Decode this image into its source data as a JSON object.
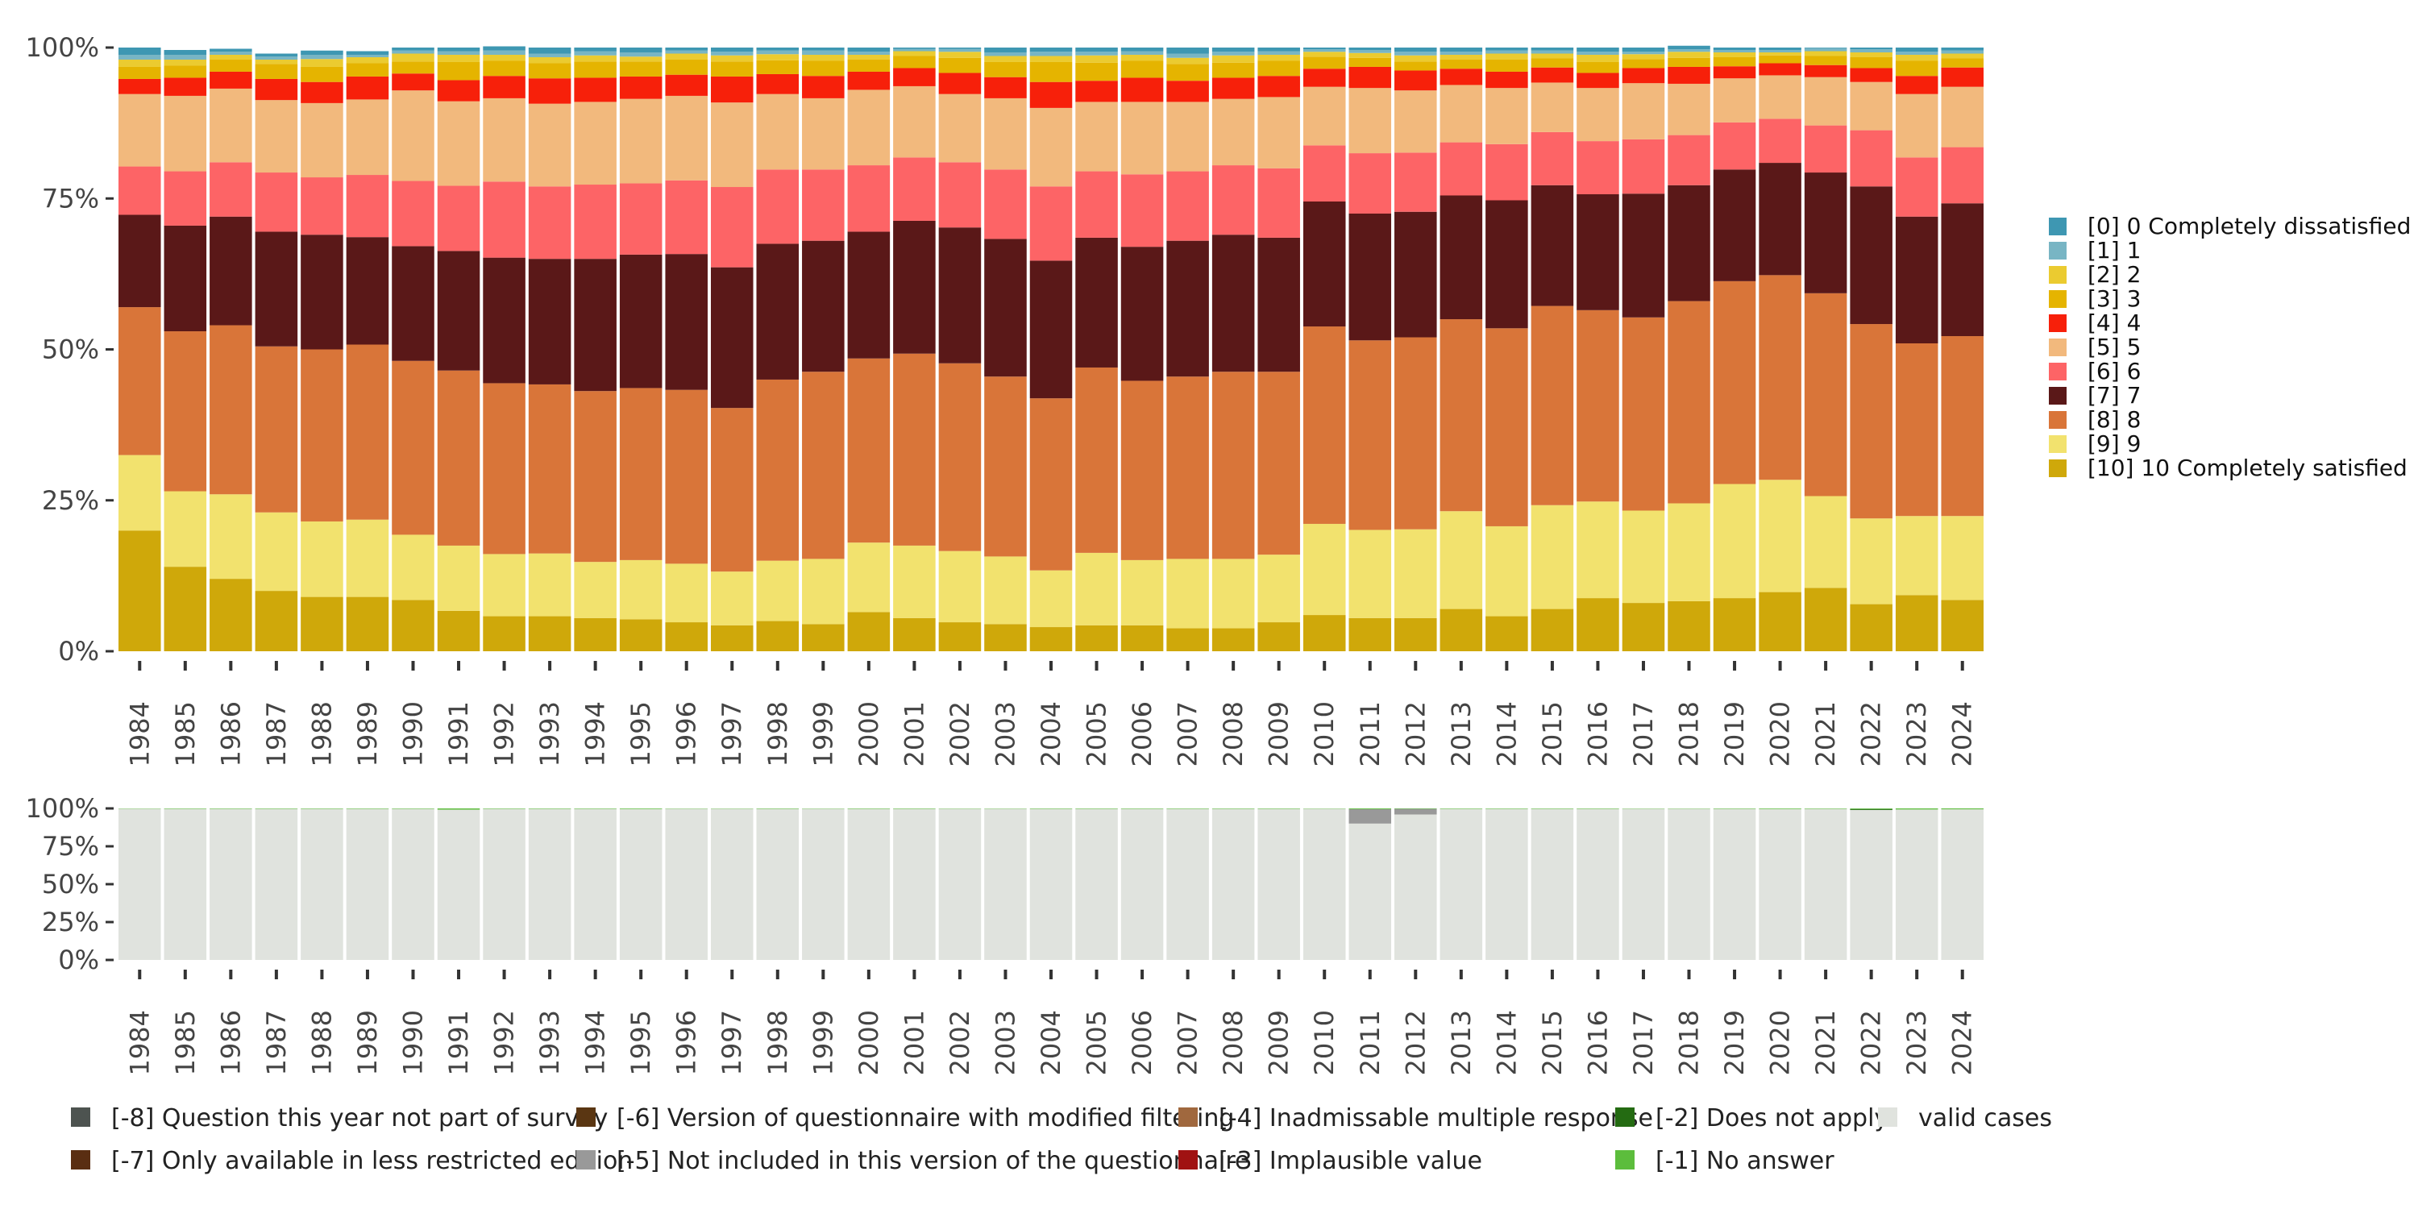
{
  "chart_data": [
    {
      "type": "bar",
      "stacked": true,
      "normalized": true,
      "title": "",
      "xlabel": "",
      "ylabel": "",
      "ylim": [
        0,
        1
      ],
      "y_tick_labels": [
        "0%",
        "25%",
        "50%",
        "75%",
        "100%"
      ],
      "categories": [
        "1984",
        "1985",
        "1986",
        "1987",
        "1988",
        "1989",
        "1990",
        "1991",
        "1992",
        "1993",
        "1994",
        "1995",
        "1996",
        "1997",
        "1998",
        "1999",
        "2000",
        "2001",
        "2002",
        "2003",
        "2004",
        "2005",
        "2006",
        "2007",
        "2008",
        "2009",
        "2010",
        "2011",
        "2012",
        "2013",
        "2014",
        "2015",
        "2016",
        "2017",
        "2018",
        "2019",
        "2020",
        "2021",
        "2022",
        "2023",
        "2024"
      ],
      "legend_position": "right",
      "series": [
        {
          "name": "[10] 10 Completely satisfied",
          "color": "#CFA80A",
          "values": [
            0.2,
            0.14,
            0.12,
            0.1,
            0.09,
            0.09,
            0.085,
            0.067,
            0.058,
            0.058,
            0.055,
            0.053,
            0.048,
            0.043,
            0.05,
            0.045,
            0.065,
            0.055,
            0.048,
            0.045,
            0.04,
            0.043,
            0.043,
            0.038,
            0.038,
            0.048,
            0.06,
            0.055,
            0.055,
            0.07,
            0.058,
            0.07,
            0.088,
            0.08,
            0.083,
            0.088,
            0.098,
            0.105,
            0.078,
            0.093,
            0.085
          ]
        },
        {
          "name": "[9] 9",
          "color": "#F2E26E",
          "values": [
            0.125,
            0.125,
            0.14,
            0.13,
            0.125,
            0.128,
            0.108,
            0.108,
            0.103,
            0.104,
            0.093,
            0.098,
            0.097,
            0.089,
            0.1,
            0.108,
            0.115,
            0.12,
            0.118,
            0.112,
            0.094,
            0.12,
            0.108,
            0.115,
            0.115,
            0.112,
            0.151,
            0.146,
            0.147,
            0.162,
            0.149,
            0.172,
            0.16,
            0.153,
            0.162,
            0.189,
            0.186,
            0.152,
            0.142,
            0.131,
            0.139
          ]
        },
        {
          "name": "[8] 8",
          "color": "#D97539",
          "values": [
            0.245,
            0.265,
            0.28,
            0.275,
            0.285,
            0.29,
            0.288,
            0.29,
            0.283,
            0.28,
            0.283,
            0.285,
            0.288,
            0.271,
            0.3,
            0.31,
            0.305,
            0.318,
            0.311,
            0.298,
            0.285,
            0.307,
            0.297,
            0.302,
            0.31,
            0.303,
            0.327,
            0.314,
            0.318,
            0.318,
            0.328,
            0.33,
            0.317,
            0.32,
            0.335,
            0.336,
            0.339,
            0.336,
            0.322,
            0.286,
            0.298
          ]
        },
        {
          "name": "[7] 7",
          "color": "#5A1818",
          "values": [
            0.153,
            0.175,
            0.18,
            0.19,
            0.19,
            0.178,
            0.19,
            0.198,
            0.208,
            0.208,
            0.219,
            0.221,
            0.225,
            0.233,
            0.225,
            0.217,
            0.21,
            0.22,
            0.225,
            0.228,
            0.228,
            0.215,
            0.222,
            0.225,
            0.227,
            0.222,
            0.207,
            0.21,
            0.208,
            0.205,
            0.212,
            0.2,
            0.192,
            0.205,
            0.192,
            0.185,
            0.186,
            0.2,
            0.228,
            0.21,
            0.22
          ]
        },
        {
          "name": "[6] 6",
          "color": "#FD6466",
          "values": [
            0.08,
            0.09,
            0.09,
            0.098,
            0.095,
            0.103,
            0.108,
            0.108,
            0.126,
            0.12,
            0.123,
            0.118,
            0.122,
            0.133,
            0.123,
            0.118,
            0.11,
            0.105,
            0.108,
            0.115,
            0.123,
            0.11,
            0.12,
            0.115,
            0.115,
            0.115,
            0.093,
            0.1,
            0.098,
            0.088,
            0.093,
            0.088,
            0.088,
            0.09,
            0.083,
            0.078,
            0.073,
            0.078,
            0.093,
            0.098,
            0.093
          ]
        },
        {
          "name": "[5] 5",
          "color": "#F2B97D",
          "values": [
            0.12,
            0.125,
            0.122,
            0.12,
            0.123,
            0.125,
            0.15,
            0.14,
            0.138,
            0.137,
            0.137,
            0.14,
            0.14,
            0.14,
            0.125,
            0.118,
            0.125,
            0.118,
            0.113,
            0.118,
            0.13,
            0.115,
            0.12,
            0.115,
            0.11,
            0.118,
            0.097,
            0.108,
            0.103,
            0.095,
            0.093,
            0.082,
            0.088,
            0.093,
            0.085,
            0.073,
            0.072,
            0.08,
            0.08,
            0.105,
            0.1
          ]
        },
        {
          "name": "[4] 4",
          "color": "#F7200A",
          "values": [
            0.025,
            0.03,
            0.028,
            0.035,
            0.035,
            0.038,
            0.028,
            0.035,
            0.037,
            0.042,
            0.04,
            0.037,
            0.035,
            0.043,
            0.033,
            0.037,
            0.03,
            0.03,
            0.035,
            0.035,
            0.043,
            0.035,
            0.04,
            0.035,
            0.035,
            0.035,
            0.03,
            0.035,
            0.033,
            0.027,
            0.027,
            0.025,
            0.025,
            0.025,
            0.028,
            0.02,
            0.02,
            0.02,
            0.023,
            0.03,
            0.032
          ]
        },
        {
          "name": "[3] 3",
          "color": "#E5B400",
          "values": [
            0.02,
            0.02,
            0.02,
            0.025,
            0.025,
            0.022,
            0.02,
            0.03,
            0.025,
            0.025,
            0.027,
            0.025,
            0.025,
            0.025,
            0.023,
            0.025,
            0.02,
            0.02,
            0.025,
            0.025,
            0.033,
            0.03,
            0.028,
            0.028,
            0.025,
            0.025,
            0.02,
            0.015,
            0.015,
            0.015,
            0.02,
            0.015,
            0.018,
            0.015,
            0.015,
            0.015,
            0.013,
            0.015,
            0.018,
            0.025,
            0.015
          ]
        },
        {
          "name": "[2] 2",
          "color": "#EBCB30",
          "values": [
            0.012,
            0.01,
            0.008,
            0.007,
            0.013,
            0.01,
            0.013,
            0.012,
            0.01,
            0.01,
            0.01,
            0.008,
            0.01,
            0.01,
            0.01,
            0.01,
            0.008,
            0.008,
            0.01,
            0.01,
            0.01,
            0.012,
            0.01,
            0.01,
            0.012,
            0.01,
            0.008,
            0.008,
            0.01,
            0.008,
            0.01,
            0.008,
            0.012,
            0.008,
            0.01,
            0.008,
            0.005,
            0.008,
            0.008,
            0.01,
            0.008
          ]
        },
        {
          "name": "[1] 1",
          "color": "#78B5C4",
          "values": [
            0.008,
            0.008,
            0.005,
            0.005,
            0.007,
            0.004,
            0.005,
            0.006,
            0.007,
            0.006,
            0.007,
            0.007,
            0.005,
            0.006,
            0.006,
            0.007,
            0.005,
            0.004,
            0.005,
            0.006,
            0.007,
            0.006,
            0.006,
            0.007,
            0.006,
            0.006,
            0.004,
            0.005,
            0.006,
            0.005,
            0.005,
            0.005,
            0.005,
            0.004,
            0.004,
            0.004,
            0.004,
            0.005,
            0.005,
            0.005,
            0.005
          ]
        },
        {
          "name": "[0] 0 Completely dissatisfied",
          "color": "#3E97B2",
          "values": [
            0.012,
            0.008,
            0.005,
            0.005,
            0.007,
            0.006,
            0.005,
            0.006,
            0.007,
            0.01,
            0.006,
            0.008,
            0.005,
            0.007,
            0.005,
            0.005,
            0.007,
            0.002,
            0.002,
            0.008,
            0.007,
            0.007,
            0.006,
            0.01,
            0.007,
            0.006,
            0.003,
            0.004,
            0.007,
            0.007,
            0.005,
            0.005,
            0.007,
            0.007,
            0.006,
            0.004,
            0.004,
            0.001,
            0.003,
            0.007,
            0.005
          ]
        }
      ]
    },
    {
      "type": "bar",
      "stacked": true,
      "normalized": true,
      "title": "",
      "xlabel": "",
      "ylabel": "",
      "ylim": [
        0,
        1
      ],
      "y_tick_labels": [
        "0%",
        "25%",
        "50%",
        "75%",
        "100%"
      ],
      "categories": [
        "1984",
        "1985",
        "1986",
        "1987",
        "1988",
        "1989",
        "1990",
        "1991",
        "1992",
        "1993",
        "1994",
        "1995",
        "1996",
        "1997",
        "1998",
        "1999",
        "2000",
        "2001",
        "2002",
        "2003",
        "2004",
        "2005",
        "2006",
        "2007",
        "2008",
        "2009",
        "2010",
        "2011",
        "2012",
        "2013",
        "2014",
        "2015",
        "2016",
        "2017",
        "2018",
        "2019",
        "2020",
        "2021",
        "2022",
        "2023",
        "2024"
      ],
      "legend_position": "bottom",
      "legend": [
        {
          "name": "[-8] Question this year not part of survey",
          "color": "#4D5350"
        },
        {
          "name": "[-7] Only available in less restricted edition",
          "color": "#5A2E12"
        },
        {
          "name": "[-6] Version of questionnaire with modified filtering",
          "color": "#5A3612"
        },
        {
          "name": "[-5] Not included in this version of the questionnaire",
          "color": "#999999"
        },
        {
          "name": "[-4] Inadmissable multiple response",
          "color": "#A0683E"
        },
        {
          "name": "[-3] Implausible value",
          "color": "#A01212"
        },
        {
          "name": "[-2] Does not apply",
          "color": "#246B12"
        },
        {
          "name": "[-1] No answer",
          "color": "#5CBD3C"
        },
        {
          "name": "valid cases",
          "color": "#E0E3DE"
        }
      ],
      "series": [
        {
          "name": "valid cases",
          "color": "#E0E3DE",
          "values": [
            0.998,
            0.997,
            0.997,
            0.997,
            0.997,
            0.997,
            0.997,
            0.992,
            0.997,
            0.997,
            0.997,
            0.996,
            0.998,
            0.998,
            0.997,
            0.998,
            0.997,
            0.997,
            0.998,
            0.998,
            0.997,
            0.997,
            0.997,
            0.997,
            0.997,
            0.997,
            0.998,
            0.9,
            0.96,
            0.997,
            0.997,
            0.997,
            0.997,
            0.998,
            0.998,
            0.997,
            0.996,
            0.997,
            0.99,
            0.993,
            0.994
          ]
        },
        {
          "name": "[-5] Not included in this version of the questionnaire",
          "color": "#999999",
          "values": [
            0,
            0,
            0,
            0,
            0,
            0,
            0,
            0,
            0,
            0,
            0,
            0,
            0,
            0,
            0,
            0,
            0,
            0,
            0,
            0,
            0,
            0,
            0,
            0,
            0,
            0,
            0,
            0.095,
            0.037,
            0,
            0,
            0,
            0,
            0,
            0,
            0,
            0,
            0,
            0,
            0,
            0
          ]
        },
        {
          "name": "[-2] Does not apply",
          "color": "#246B12",
          "values": [
            0,
            0,
            0,
            0,
            0,
            0,
            0,
            0,
            0,
            0,
            0,
            0,
            0,
            0,
            0,
            0,
            0,
            0,
            0,
            0,
            0,
            0,
            0,
            0,
            0,
            0,
            0,
            0,
            0,
            0,
            0,
            0,
            0,
            0,
            0,
            0,
            0,
            0,
            0.006,
            0,
            0
          ]
        },
        {
          "name": "[-1] No answer",
          "color": "#5CBD3C",
          "values": [
            0.002,
            0.003,
            0.003,
            0.003,
            0.003,
            0.003,
            0.003,
            0.008,
            0.003,
            0.003,
            0.003,
            0.004,
            0.002,
            0.002,
            0.003,
            0.002,
            0.003,
            0.003,
            0.002,
            0.002,
            0.003,
            0.003,
            0.003,
            0.003,
            0.003,
            0.003,
            0.002,
            0.005,
            0.003,
            0.003,
            0.003,
            0.003,
            0.003,
            0.002,
            0.002,
            0.003,
            0.004,
            0.003,
            0.004,
            0.007,
            0.006
          ]
        }
      ]
    }
  ]
}
